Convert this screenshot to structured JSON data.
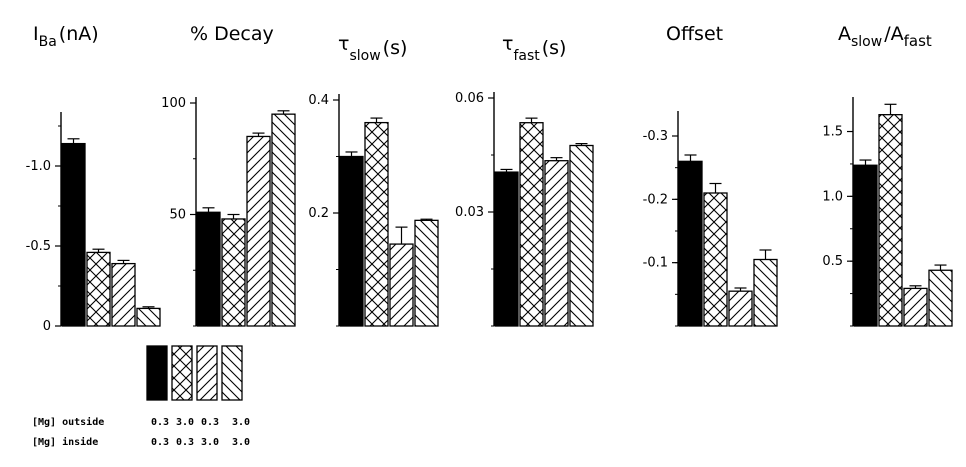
{
  "colors": {
    "ink": "#000000",
    "paper": "#ffffff"
  },
  "conditions": [
    {
      "pattern": "solid",
      "mg_outside": "0.3",
      "mg_inside": "0.3"
    },
    {
      "pattern": "crosshatch",
      "mg_outside": "3.0",
      "mg_inside": "0.3"
    },
    {
      "pattern": "forward-diagonal",
      "mg_outside": "0.3",
      "mg_inside": "3.0"
    },
    {
      "pattern": "backward-diagonal",
      "mg_outside": "3.0",
      "mg_inside": "3.0"
    }
  ],
  "legend": {
    "row_labels": [
      "[Mg] outside",
      "[Mg] inside"
    ]
  },
  "chart_data": [
    {
      "type": "bar",
      "title": "I",
      "title_sub": "Ba",
      "title_suffix": "(nA)",
      "ylim": [
        0,
        -1.3
      ],
      "ticks": [
        0,
        -0.5,
        -1.0
      ],
      "tick_labels": [
        "0",
        "-0.5",
        "-1.0"
      ],
      "values": [
        -1.14,
        -0.46,
        -0.39,
        -0.11
      ],
      "errors": [
        0.03,
        0.02,
        0.02,
        0.01
      ]
    },
    {
      "type": "bar",
      "title": "% Decay",
      "title_sub": "",
      "title_suffix": "",
      "ylim": [
        0,
        100
      ],
      "ticks": [
        50,
        100
      ],
      "tick_labels": [
        "50",
        "100"
      ],
      "values": [
        51,
        48,
        85,
        95
      ],
      "errors": [
        2,
        2,
        1.5,
        1.5
      ]
    },
    {
      "type": "bar",
      "title": "τ",
      "title_sub": "slow",
      "title_suffix": "(s)",
      "ylim": [
        0,
        0.4
      ],
      "ticks": [
        0.2,
        0.4
      ],
      "tick_labels": [
        "0.2",
        "0.4"
      ],
      "values": [
        0.3,
        0.36,
        0.145,
        0.187
      ],
      "errors": [
        0.008,
        0.008,
        0.03,
        0.002
      ]
    },
    {
      "type": "bar",
      "title": "τ",
      "title_sub": "fast",
      "title_suffix": "(s)",
      "ylim": [
        0,
        0.06
      ],
      "ticks": [
        0.03,
        0.06
      ],
      "tick_labels": [
        "0.03",
        "0.06"
      ],
      "values": [
        0.0405,
        0.0535,
        0.0435,
        0.0475
      ],
      "errors": [
        0.0007,
        0.0012,
        0.0008,
        0.0005
      ]
    },
    {
      "type": "bar",
      "title": "Offset",
      "title_sub": "",
      "title_suffix": "",
      "ylim": [
        0,
        -0.33
      ],
      "ticks": [
        -0.1,
        -0.2,
        -0.3
      ],
      "tick_labels": [
        "-0.1",
        "-0.2",
        "-0.3"
      ],
      "values": [
        -0.26,
        -0.21,
        -0.055,
        -0.105
      ],
      "errors": [
        0.01,
        0.015,
        0.005,
        0.015
      ]
    },
    {
      "type": "bar",
      "title": "A",
      "title_sub": "slow",
      "title_suffix": "/A",
      "title_sub2": "fast",
      "ylim": [
        0,
        1.72
      ],
      "ticks": [
        0.5,
        1.0,
        1.5
      ],
      "tick_labels": [
        "0.5",
        "1.0",
        "1.5"
      ],
      "values": [
        1.24,
        1.63,
        0.29,
        0.43
      ],
      "errors": [
        0.04,
        0.08,
        0.02,
        0.04
      ]
    }
  ]
}
